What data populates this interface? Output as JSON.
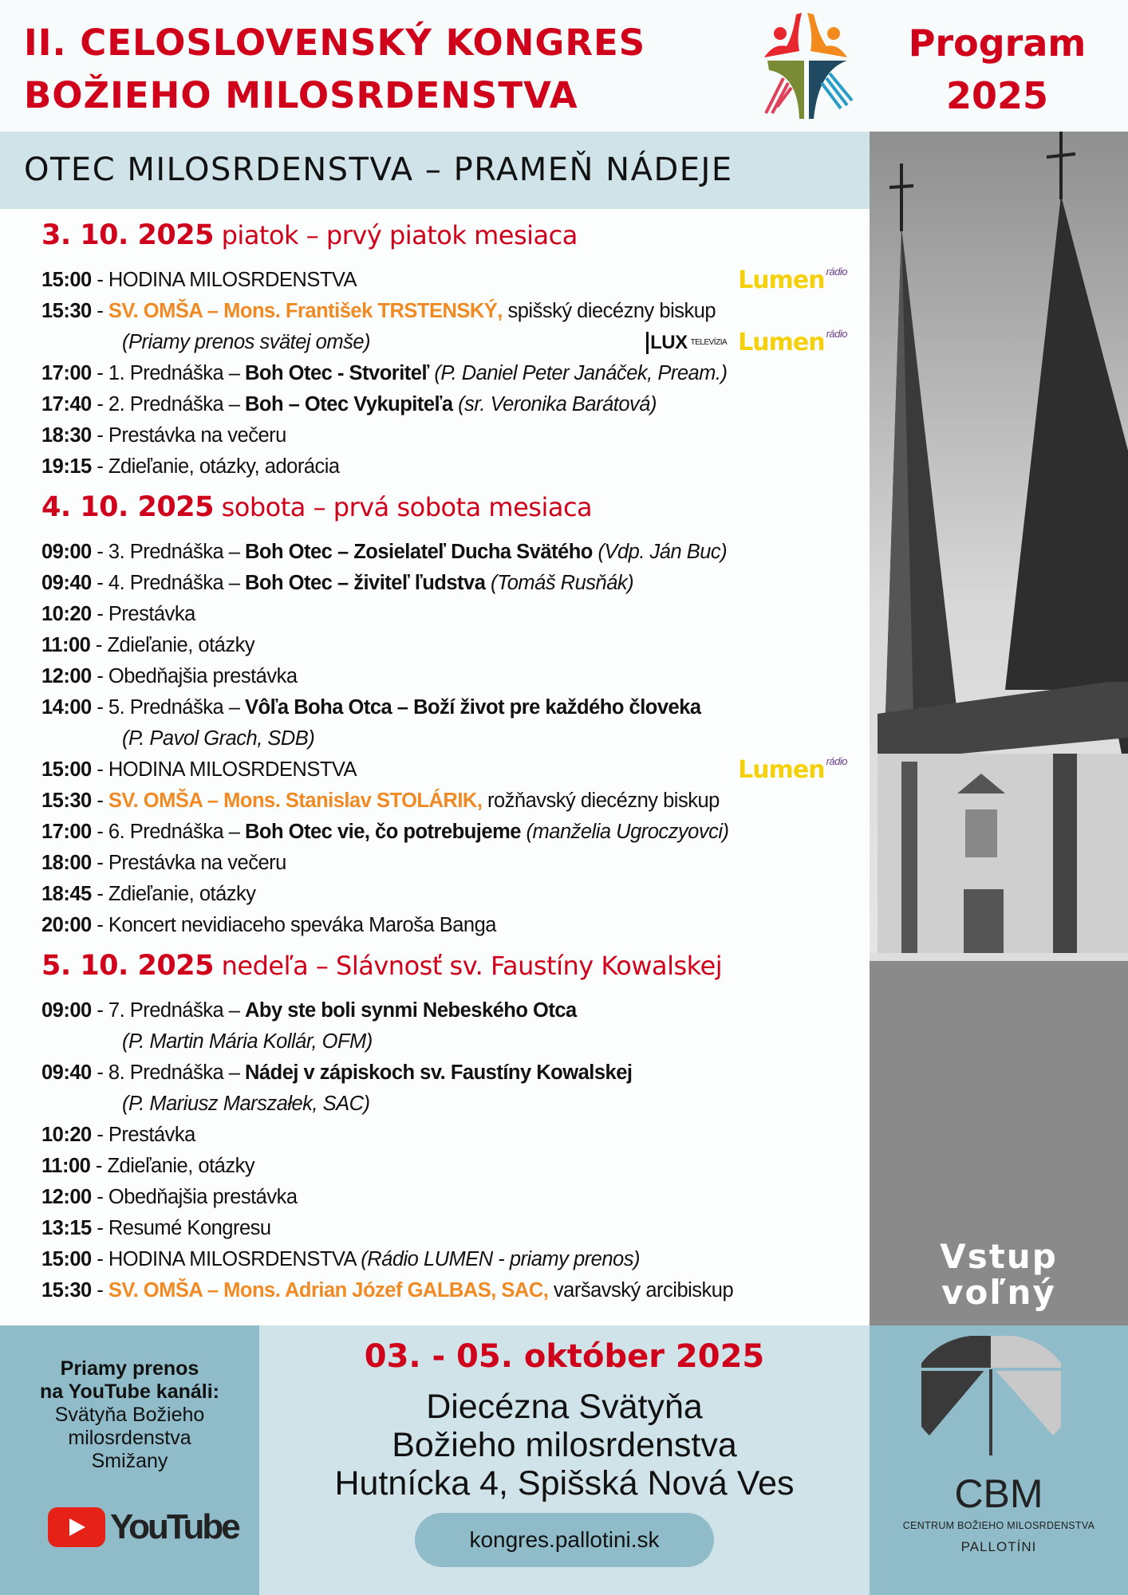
{
  "header": {
    "title_line1": "II. CELOSLOVENSKÝ KONGRES",
    "title_line2": "BOŽIEHO MILOSRDENSTVA",
    "program_line1": "Program",
    "program_line2": "2025",
    "subtitle": "OTEC MILOSRDENSTVA – PRAMEŇ NÁDEJE",
    "accent": "#d0021b"
  },
  "days": [
    {
      "date": "3. 10. 2025",
      "label": "piatok – prvý piatok mesiaca",
      "items": [
        {
          "time": "15:00",
          "parts": [
            [
              "n",
              " - HODINA MILOSRDENSTVA"
            ]
          ],
          "media": [
            "lumen"
          ]
        },
        {
          "time": "15:30",
          "parts": [
            [
              "n",
              " - "
            ],
            [
              "o",
              "SV. OMŠA – Mons. František TRSTENSKÝ,"
            ],
            [
              "n",
              " spišský diecézny biskup"
            ]
          ]
        },
        {
          "time": "",
          "parts": [
            [
              "i",
              "(Priamy prenos svätej omše)"
            ]
          ],
          "media": [
            "lux",
            "lumen"
          ]
        },
        {
          "time": "17:00",
          "parts": [
            [
              "n",
              " - 1. Prednáška – "
            ],
            [
              "b",
              "Boh Otec - Stvoriteľ"
            ],
            [
              "i",
              " (P. Daniel Peter Janáček, Pream.)"
            ]
          ]
        },
        {
          "time": "17:40",
          "parts": [
            [
              "n",
              " - 2. Prednáška – "
            ],
            [
              "b",
              "Boh – Otec Vykupiteľa"
            ],
            [
              "i",
              " (sr. Veronika Barátová)"
            ]
          ]
        },
        {
          "time": "18:30",
          "parts": [
            [
              "n",
              " - Prestávka na večeru"
            ]
          ]
        },
        {
          "time": "19:15",
          "parts": [
            [
              "n",
              " - Zdieľanie, otázky, adorácia"
            ]
          ]
        }
      ]
    },
    {
      "date": "4. 10. 2025",
      "label": "sobota – prvá sobota mesiaca",
      "items": [
        {
          "time": "09:00",
          "parts": [
            [
              "n",
              " - 3. Prednáška – "
            ],
            [
              "b",
              "Boh Otec – Zosielateľ Ducha Svätého"
            ],
            [
              "i",
              " (Vdp. Ján Buc)"
            ]
          ]
        },
        {
          "time": "09:40",
          "parts": [
            [
              "n",
              " - 4. Prednáška – "
            ],
            [
              "b",
              "Boh Otec – živiteľ ľudstva"
            ],
            [
              "i",
              " (Tomáš Rusňák)"
            ]
          ]
        },
        {
          "time": "10:20",
          "parts": [
            [
              "n",
              " - Prestávka"
            ]
          ]
        },
        {
          "time": "11:00",
          "parts": [
            [
              "n",
              " - Zdieľanie, otázky"
            ]
          ]
        },
        {
          "time": "12:00",
          "parts": [
            [
              "n",
              " - Obedňajšia prestávka"
            ]
          ]
        },
        {
          "time": "14:00",
          "parts": [
            [
              "n",
              " - 5. Prednáška – "
            ],
            [
              "b",
              "Vôľa Boha Otca – Boží život pre každého človeka"
            ]
          ]
        },
        {
          "time": "",
          "parts": [
            [
              "i",
              "(P. Pavol Grach, SDB)"
            ]
          ]
        },
        {
          "time": "15:00",
          "parts": [
            [
              "n",
              " - HODINA MILOSRDENSTVA"
            ]
          ],
          "media": [
            "lumen"
          ]
        },
        {
          "time": "15:30",
          "parts": [
            [
              "n",
              " - "
            ],
            [
              "o",
              "SV. OMŠA – Mons. Stanislav STOLÁRIK,"
            ],
            [
              "n",
              " rožňavský diecézny biskup"
            ]
          ]
        },
        {
          "time": "17:00",
          "parts": [
            [
              "n",
              " - 6. Prednáška – "
            ],
            [
              "b",
              "Boh Otec vie, čo potrebujeme"
            ],
            [
              "i",
              " (manželia Ugroczyovci)"
            ]
          ]
        },
        {
          "time": "18:00",
          "parts": [
            [
              "n",
              " - Prestávka na večeru"
            ]
          ]
        },
        {
          "time": "18:45",
          "parts": [
            [
              "n",
              " - Zdieľanie, otázky"
            ]
          ]
        },
        {
          "time": "20:00",
          "parts": [
            [
              "n",
              " - Koncert nevidiaceho speváka Maroša Banga"
            ]
          ]
        }
      ]
    },
    {
      "date": "5. 10. 2025",
      "label": "nedeľa – Slávnosť sv. Faustíny Kowalskej",
      "items": [
        {
          "time": "09:00",
          "parts": [
            [
              "n",
              " - 7. Prednáška – "
            ],
            [
              "b",
              "Aby ste boli synmi Nebeského Otca"
            ]
          ]
        },
        {
          "time": "",
          "parts": [
            [
              "i",
              "(P. Martin Mária Kollár, OFM)"
            ]
          ]
        },
        {
          "time": "09:40",
          "parts": [
            [
              "n",
              " - 8. Prednáška – "
            ],
            [
              "b",
              "Nádej v zápiskoch sv. Faustíny Kowalskej"
            ]
          ]
        },
        {
          "time": "",
          "parts": [
            [
              "i",
              "(P. Mariusz Marszałek, SAC)"
            ]
          ]
        },
        {
          "time": "10:20",
          "parts": [
            [
              "n",
              " - Prestávka"
            ]
          ]
        },
        {
          "time": "11:00",
          "parts": [
            [
              "n",
              " - Zdieľanie, otázky"
            ]
          ]
        },
        {
          "time": "12:00",
          "parts": [
            [
              "n",
              " - Obedňajšia prestávka"
            ]
          ]
        },
        {
          "time": "13:15",
          "parts": [
            [
              "n",
              " - Resumé Kongresu"
            ]
          ]
        },
        {
          "time": "15:00",
          "parts": [
            [
              "n",
              " - HODINA MILOSRDENSTVA  "
            ],
            [
              "i",
              "(Rádio LUMEN - priamy prenos)"
            ]
          ]
        },
        {
          "time": "15:30",
          "parts": [
            [
              "n",
              " - "
            ],
            [
              "o",
              "SV. OMŠA – Mons. Adrian Józef GALBAS, SAC,"
            ],
            [
              "n",
              " varšavský arcibiskup"
            ]
          ]
        }
      ]
    }
  ],
  "media_logos": {
    "lumen_small": "rádio",
    "lumen_name": "Lumen",
    "lux_name": "LUX",
    "lux_sub": "TELEVÍZIA"
  },
  "photo": {
    "overlay_line1": "Vstup",
    "overlay_line2": "voľný"
  },
  "footer": {
    "stream_line1": "Priamy prenos",
    "stream_line2": "na YouTube kanáli:",
    "channel_line1": "Svätyňa Božieho",
    "channel_line2": "milosrdenstva",
    "channel_line3": "Smižany",
    "youtube_label": "YouTube",
    "dates": "03. - 05. október 2025",
    "venue_line1": "Diecézna Svätyňa",
    "venue_line2": "Božieho milosrdenstva",
    "venue_line3": "Hutnícka 4, Spišská Nová Ves",
    "url": "kongres.pallotini.sk",
    "cbm_abbr": "CBM",
    "cbm_full": "CENTRUM BOŽIEHO MILOSRDENSTVA",
    "cbm_sub": "PALLOTÍNI"
  }
}
